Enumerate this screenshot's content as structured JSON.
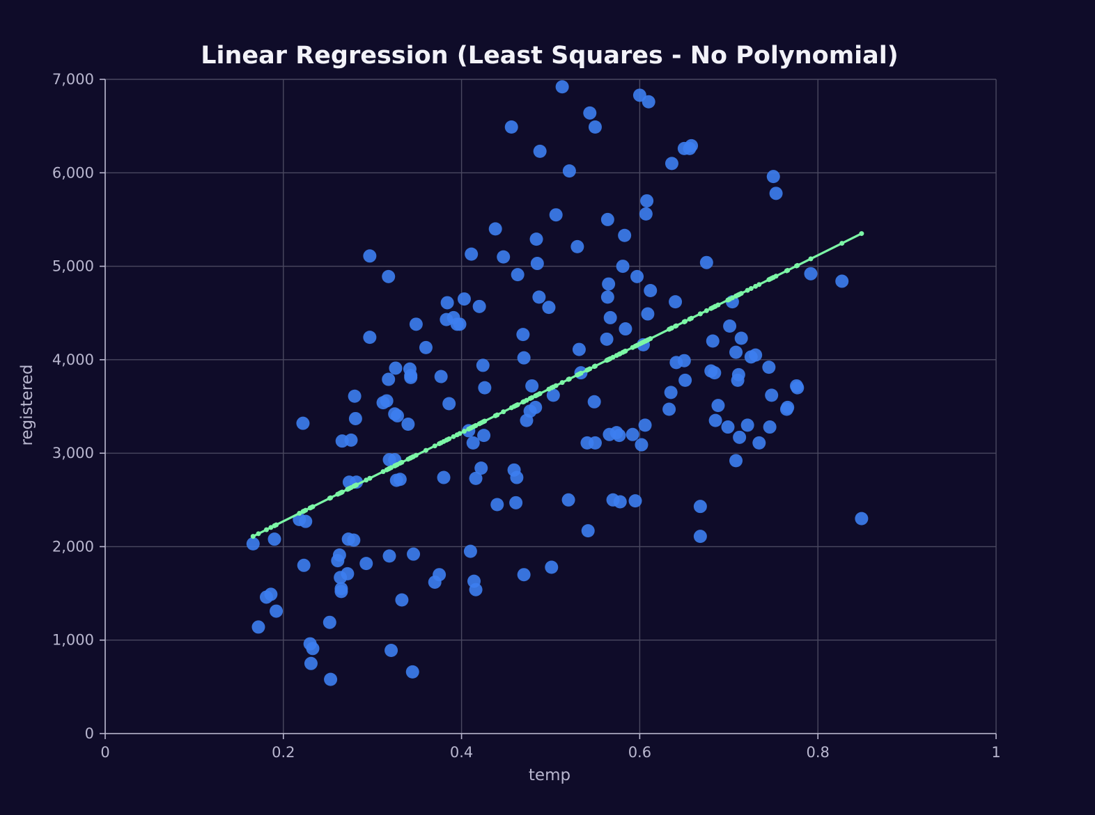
{
  "colors": {
    "background": "#0f0c29",
    "points": "#3d7ef0",
    "regression": "#7cf6a6",
    "grid": "#4a4860",
    "text": "#b9b7cf"
  },
  "chart_data": {
    "type": "scatter",
    "title": "Linear Regression (Least Squares - No Polynomial)",
    "xlabel": "temp",
    "ylabel": "registered",
    "xlim": [
      0,
      1
    ],
    "ylim": [
      0,
      7000
    ],
    "x_ticks": [
      0,
      0.2,
      0.4,
      0.6,
      0.8,
      1
    ],
    "x_tick_labels": [
      "0",
      "0.2",
      "0.4",
      "0.6",
      "0.8",
      "1"
    ],
    "y_ticks": [
      0,
      1000,
      2000,
      3000,
      4000,
      5000,
      6000,
      7000
    ],
    "y_tick_labels": [
      "0",
      "1,000",
      "2,000",
      "3,000",
      "4,000",
      "5,000",
      "6,000",
      "7,000"
    ],
    "grid": true,
    "legend": "none",
    "series": [
      {
        "type": "scatter",
        "x": [
          0.166,
          0.172,
          0.181,
          0.186,
          0.19,
          0.192,
          0.218,
          0.222,
          0.223,
          0.225,
          0.23,
          0.231,
          0.233,
          0.252,
          0.253,
          0.261,
          0.263,
          0.264,
          0.265,
          0.265,
          0.266,
          0.272,
          0.273,
          0.274,
          0.276,
          0.279,
          0.28,
          0.281,
          0.282,
          0.293,
          0.297,
          0.297,
          0.312,
          0.316,
          0.318,
          0.318,
          0.319,
          0.319,
          0.321,
          0.325,
          0.325,
          0.326,
          0.327,
          0.328,
          0.331,
          0.333,
          0.34,
          0.342,
          0.343,
          0.343,
          0.345,
          0.346,
          0.349,
          0.36,
          0.37,
          0.375,
          0.377,
          0.38,
          0.383,
          0.384,
          0.386,
          0.391,
          0.395,
          0.398,
          0.403,
          0.408,
          0.41,
          0.411,
          0.413,
          0.414,
          0.416,
          0.416,
          0.42,
          0.422,
          0.424,
          0.425,
          0.426,
          0.438,
          0.44,
          0.447,
          0.456,
          0.459,
          0.461,
          0.462,
          0.463,
          0.469,
          0.47,
          0.47,
          0.473,
          0.477,
          0.479,
          0.483,
          0.484,
          0.485,
          0.487,
          0.488,
          0.498,
          0.501,
          0.503,
          0.506,
          0.513,
          0.52,
          0.521,
          0.53,
          0.532,
          0.534,
          0.541,
          0.542,
          0.544,
          0.549,
          0.55,
          0.55,
          0.563,
          0.564,
          0.564,
          0.565,
          0.566,
          0.567,
          0.57,
          0.574,
          0.577,
          0.578,
          0.581,
          0.583,
          0.584,
          0.592,
          0.595,
          0.597,
          0.6,
          0.602,
          0.604,
          0.606,
          0.607,
          0.608,
          0.609,
          0.61,
          0.612,
          0.633,
          0.635,
          0.636,
          0.64,
          0.641,
          0.65,
          0.65,
          0.651,
          0.656,
          0.658,
          0.668,
          0.668,
          0.675,
          0.68,
          0.682,
          0.684,
          0.685,
          0.688,
          0.699,
          0.701,
          0.704,
          0.708,
          0.708,
          0.71,
          0.711,
          0.712,
          0.714,
          0.721,
          0.725,
          0.73,
          0.734,
          0.745,
          0.746,
          0.748,
          0.75,
          0.753,
          0.765,
          0.766,
          0.776,
          0.777,
          0.792,
          0.827,
          0.849
        ],
        "y": [
          2030,
          1140,
          1460,
          1490,
          2080,
          1310,
          2290,
          3320,
          1800,
          2270,
          960,
          750,
          910,
          1190,
          580,
          1850,
          1910,
          1670,
          1520,
          1550,
          3130,
          1710,
          2080,
          2690,
          3140,
          2070,
          3610,
          3370,
          2690,
          1820,
          5110,
          4240,
          3540,
          3560,
          4890,
          3790,
          1900,
          2930,
          890,
          2930,
          3420,
          3910,
          2710,
          3400,
          2720,
          1430,
          3310,
          3900,
          3830,
          3810,
          660,
          1920,
          4380,
          4130,
          1620,
          1700,
          3820,
          2740,
          4430,
          4610,
          3530,
          4450,
          4380,
          4380,
          4650,
          3240,
          1950,
          5130,
          3110,
          1630,
          2730,
          1540,
          4570,
          2840,
          3940,
          3190,
          3700,
          5400,
          2450,
          5100,
          6490,
          2820,
          2470,
          2740,
          4910,
          4270,
          4020,
          1700,
          3350,
          3450,
          3720,
          3490,
          5290,
          5030,
          4670,
          6230,
          4560,
          1780,
          3620,
          5550,
          6920,
          2500,
          6020,
          5210,
          4110,
          3860,
          3110,
          2170,
          6640,
          3550,
          3110,
          6490,
          4220,
          5500,
          4670,
          4810,
          3200,
          4450,
          2500,
          3220,
          3190,
          2480,
          5000,
          5330,
          4330,
          3200,
          2490,
          4890,
          6830,
          3090,
          4160,
          3300,
          5560,
          5700,
          4490,
          6760,
          4740,
          3470,
          3650,
          6100,
          4620,
          3970,
          3990,
          6260,
          3780,
          6260,
          6290,
          2430,
          2110,
          5040,
          3880,
          4200,
          3860,
          3350,
          3510,
          3280,
          4360,
          4620,
          2920,
          4080,
          3780,
          3840,
          3170,
          4230,
          3300,
          4030,
          4050,
          3110,
          3920,
          3280,
          3620,
          5960,
          5780,
          3470,
          3490,
          3720,
          3700,
          4920,
          4840,
          2300
        ]
      },
      {
        "type": "line",
        "name": "",
        "x": [
          0.166,
          0.849
        ],
        "y": [
          2110,
          5350
        ]
      }
    ]
  }
}
